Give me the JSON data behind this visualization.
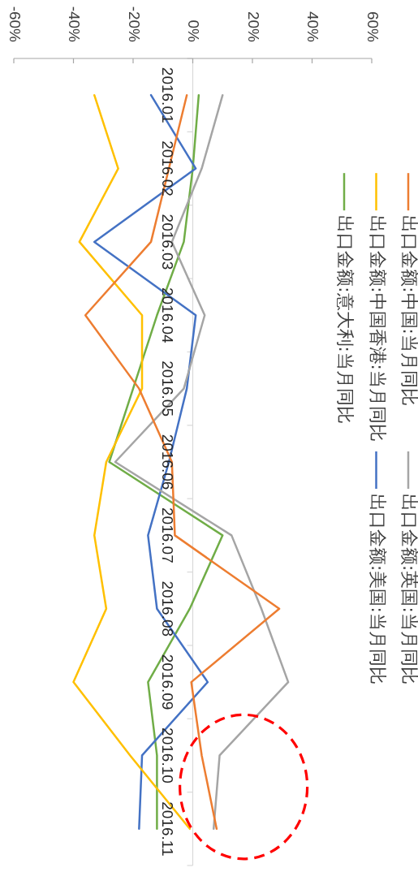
{
  "chart_data": {
    "type": "line",
    "orientation": "horizontal",
    "categories": [
      "2016.01",
      "2016.02",
      "2016.03",
      "2016.04",
      "2016.05",
      "2016.06",
      "2016.07",
      "2016.08",
      "2016.09",
      "2016.10",
      "2016.11"
    ],
    "series": [
      {
        "name": "出口金额:中国:当月同比",
        "color": "#ed7d31",
        "values": [
          -2,
          -8,
          -14,
          -36,
          -18,
          -7,
          -6,
          29,
          -0.5,
          3,
          8
        ]
      },
      {
        "name": "出口金额:英国:当月同比",
        "color": "#a5a5a5",
        "values": [
          10,
          3,
          -7,
          4,
          -3,
          -26,
          13,
          23,
          32,
          9,
          7
        ]
      },
      {
        "name": "出口金额:中国香港:当月同比",
        "color": "#ffc000",
        "values": [
          -33,
          -25,
          -38,
          -17,
          -17,
          -29,
          -33,
          -29,
          -40,
          -21,
          -1
        ]
      },
      {
        "name": "出口金额:美国:当月同比",
        "color": "#4472c4",
        "values": [
          -14,
          1,
          -33,
          1,
          -2,
          -8,
          -15,
          -12,
          5,
          -17,
          -18
        ]
      },
      {
        "name": "出口金额:意大利:当月同比",
        "color": "#70ad47",
        "values": [
          2,
          0,
          -3,
          -12,
          -20,
          -28,
          10,
          -1,
          -15,
          -12,
          -12
        ]
      }
    ],
    "xlim": [
      -60,
      60
    ],
    "xticks": [
      {
        "value": -60,
        "label": "-60%"
      },
      {
        "value": -40,
        "label": "-40%"
      },
      {
        "value": -20,
        "label": "-20%"
      },
      {
        "value": 0,
        "label": "0%"
      },
      {
        "value": 20,
        "label": "20%"
      },
      {
        "value": 40,
        "label": "40%"
      },
      {
        "value": 60,
        "label": "60%"
      }
    ],
    "legend": "right",
    "marker": "none"
  }
}
